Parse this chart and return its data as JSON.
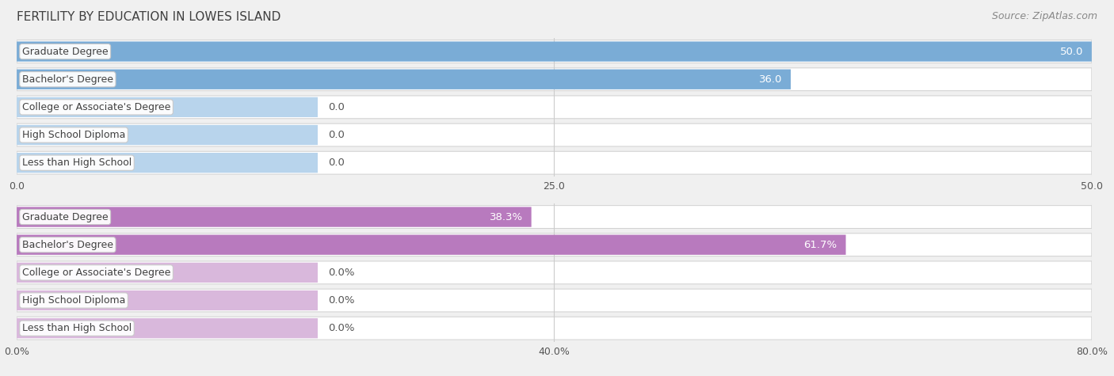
{
  "title": "FERTILITY BY EDUCATION IN LOWES ISLAND",
  "source": "Source: ZipAtlas.com",
  "top_chart": {
    "categories": [
      "Less than High School",
      "High School Diploma",
      "College or Associate's Degree",
      "Bachelor's Degree",
      "Graduate Degree"
    ],
    "values": [
      0.0,
      0.0,
      0.0,
      36.0,
      50.0
    ],
    "bar_color": "#7aacd6",
    "light_bar_color": "#b8d4ec",
    "xlim": [
      0,
      50
    ],
    "xticks": [
      0.0,
      25.0,
      50.0
    ],
    "xtick_labels": [
      "0.0",
      "25.0",
      "50.0"
    ]
  },
  "bottom_chart": {
    "categories": [
      "Less than High School",
      "High School Diploma",
      "College or Associate's Degree",
      "Bachelor's Degree",
      "Graduate Degree"
    ],
    "values": [
      0.0,
      0.0,
      0.0,
      61.7,
      38.3
    ],
    "bar_color": "#b87abe",
    "light_bar_color": "#d9b8dc",
    "xlim": [
      0,
      80
    ],
    "xticks": [
      0.0,
      40.0,
      80.0
    ],
    "xtick_labels": [
      "0.0%",
      "40.0%",
      "80.0%"
    ]
  },
  "background_color": "#f0f0f0",
  "row_odd_color": "#f8f8f8",
  "row_even_color": "#ececec",
  "bar_height": 0.72,
  "label_fontsize": 9.5,
  "tick_fontsize": 9,
  "title_fontsize": 11,
  "source_fontsize": 9,
  "cat_label_fontsize": 9
}
